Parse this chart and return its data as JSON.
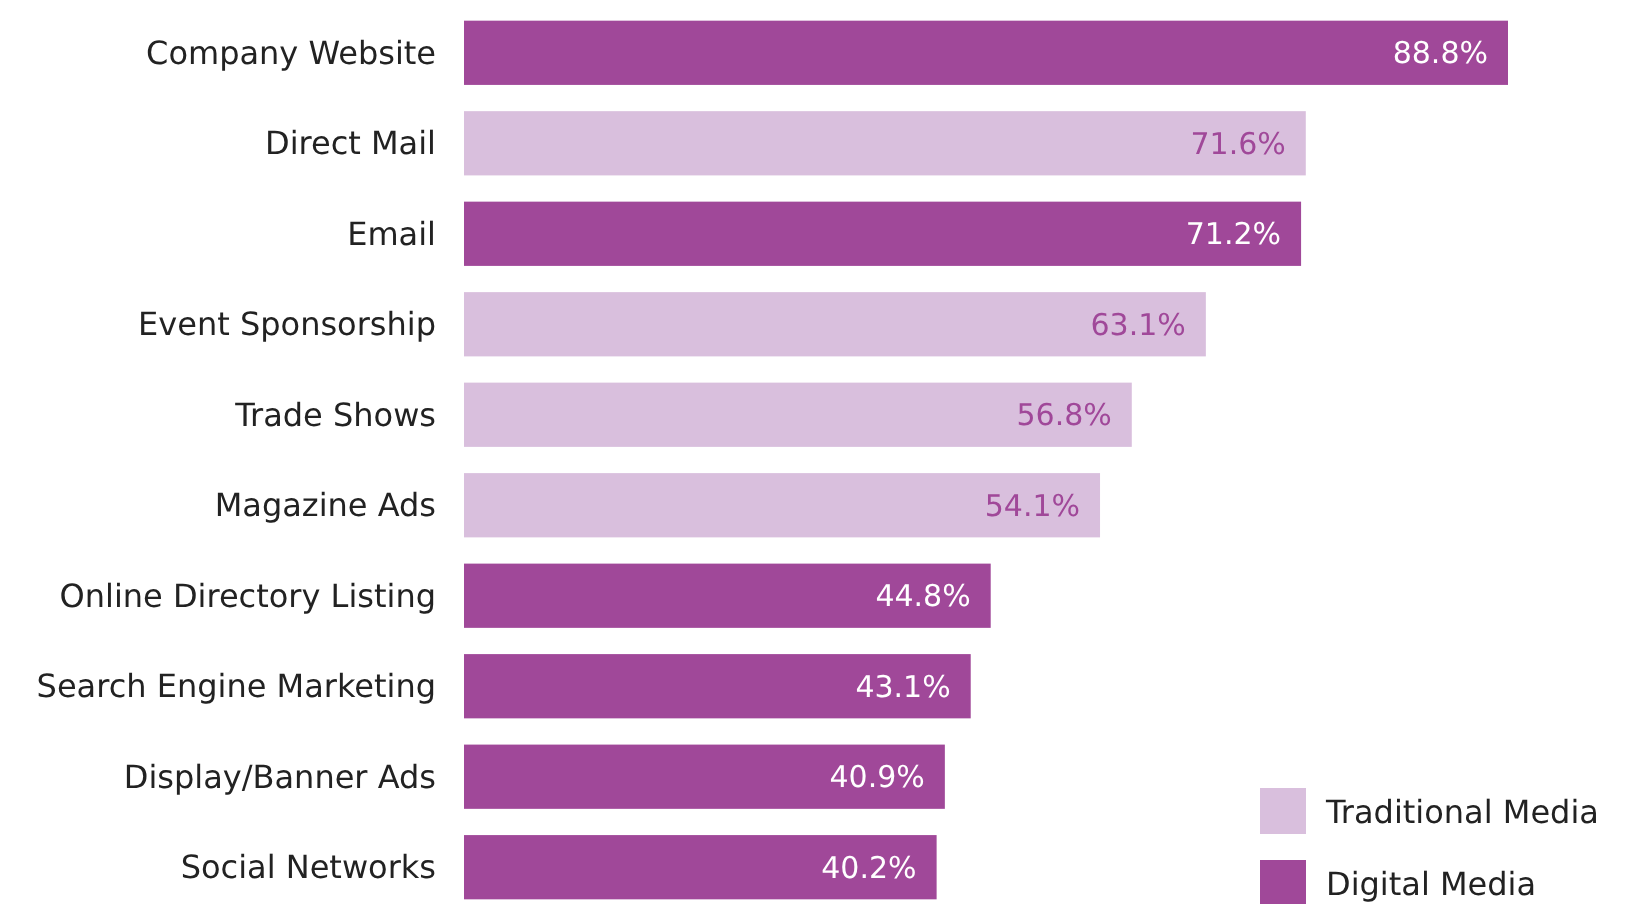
{
  "chart_data": {
    "type": "bar",
    "orientation": "horizontal",
    "categories": [
      "Company Website",
      "Direct Mail",
      "Email",
      "Event Sponsorship",
      "Trade Shows",
      "Magazine Ads",
      "Online Directory Listing",
      "Search Engine Marketing",
      "Display/Banner Ads",
      "Social Networks"
    ],
    "series": [
      {
        "name": "Traditional Media",
        "color": "#d9bfdd",
        "values": [
          null,
          71.6,
          null,
          63.1,
          56.8,
          54.1,
          null,
          null,
          null,
          null
        ],
        "value_labels": [
          null,
          "71.6%",
          null,
          "63.1%",
          "56.8%",
          "54.1%",
          null,
          null,
          null,
          null
        ]
      },
      {
        "name": "Digital Media",
        "color": "#a04899",
        "values": [
          88.8,
          null,
          71.2,
          null,
          null,
          null,
          44.8,
          43.1,
          40.9,
          40.2
        ],
        "value_labels": [
          "88.8%",
          null,
          "71.2%",
          null,
          null,
          null,
          "44.8%",
          "43.1%",
          "40.9%",
          "40.2%"
        ]
      }
    ],
    "tick_labels": "y",
    "legend": "bottom right"
  }
}
